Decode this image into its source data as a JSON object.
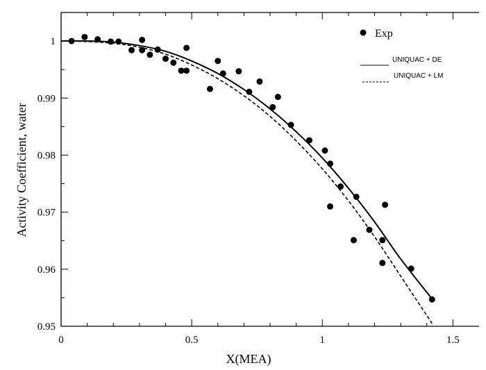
{
  "chart_data": {
    "type": "scatter",
    "title": "",
    "xlabel": "X(MEA)",
    "ylabel": "Activity Coefficient, water",
    "xlim": [
      0,
      1.6
    ],
    "ylim": [
      0.95,
      1.005
    ],
    "xticks": [
      0,
      0.5,
      1,
      1.5
    ],
    "xtick_labels": [
      "0",
      "0.5",
      "1",
      "1.5"
    ],
    "yticks": [
      0.95,
      0.96,
      0.97,
      0.98,
      0.99,
      1
    ],
    "ytick_labels": [
      "0.95",
      "0.96",
      "0.97",
      "0.98",
      "0.99",
      "1"
    ],
    "grid": false,
    "legend_position": "top-right",
    "series": [
      {
        "name": "Exp",
        "kind": "scatter",
        "color": "#000000",
        "x": [
          0.04,
          0.09,
          0.14,
          0.19,
          0.22,
          0.27,
          0.31,
          0.31,
          0.34,
          0.37,
          0.4,
          0.43,
          0.46,
          0.48,
          0.48,
          0.57,
          0.6,
          0.62,
          0.68,
          0.72,
          0.76,
          0.81,
          0.83,
          0.88,
          0.95,
          1.01,
          1.03,
          1.03,
          1.07,
          1.12,
          1.13,
          1.18,
          1.23,
          1.23,
          1.24,
          1.34,
          1.42
        ],
        "y": [
          1.0,
          1.0007,
          1.0003,
          0.9999,
          0.9999,
          0.9984,
          1.0002,
          0.9984,
          0.9976,
          0.9985,
          0.9969,
          0.9962,
          0.9948,
          0.9988,
          0.9948,
          0.9916,
          0.9965,
          0.9943,
          0.9947,
          0.9911,
          0.9929,
          0.9884,
          0.9902,
          0.9853,
          0.9826,
          0.9808,
          0.9785,
          0.971,
          0.9745,
          0.9651,
          0.9727,
          0.9669,
          0.9651,
          0.9611,
          0.9713,
          0.9601,
          0.9547
        ]
      },
      {
        "name": "UNIQUAC + DE",
        "kind": "line",
        "dash": "solid",
        "color": "#000000",
        "x": [
          0,
          0.1,
          0.2,
          0.3,
          0.4,
          0.5,
          0.6,
          0.7,
          0.8,
          0.9,
          1.0,
          1.1,
          1.2,
          1.3,
          1.42
        ],
        "y": [
          1.0,
          1.0,
          0.9998,
          0.9992,
          0.9982,
          0.9965,
          0.9943,
          0.9915,
          0.9881,
          0.9841,
          0.9795,
          0.9742,
          0.9683,
          0.9618,
          0.9548
        ]
      },
      {
        "name": "UNIQUAC + LM",
        "kind": "line",
        "dash": "dashed",
        "color": "#000000",
        "x": [
          0,
          0.1,
          0.2,
          0.3,
          0.4,
          0.5,
          0.6,
          0.7,
          0.8,
          0.9,
          1.0,
          1.1,
          1.2,
          1.3,
          1.42
        ],
        "y": [
          1.0,
          0.9999,
          0.9996,
          0.9989,
          0.9977,
          0.9958,
          0.9934,
          0.9904,
          0.9868,
          0.9825,
          0.9776,
          0.972,
          0.9657,
          0.9588,
          0.9505
        ]
      }
    ]
  }
}
